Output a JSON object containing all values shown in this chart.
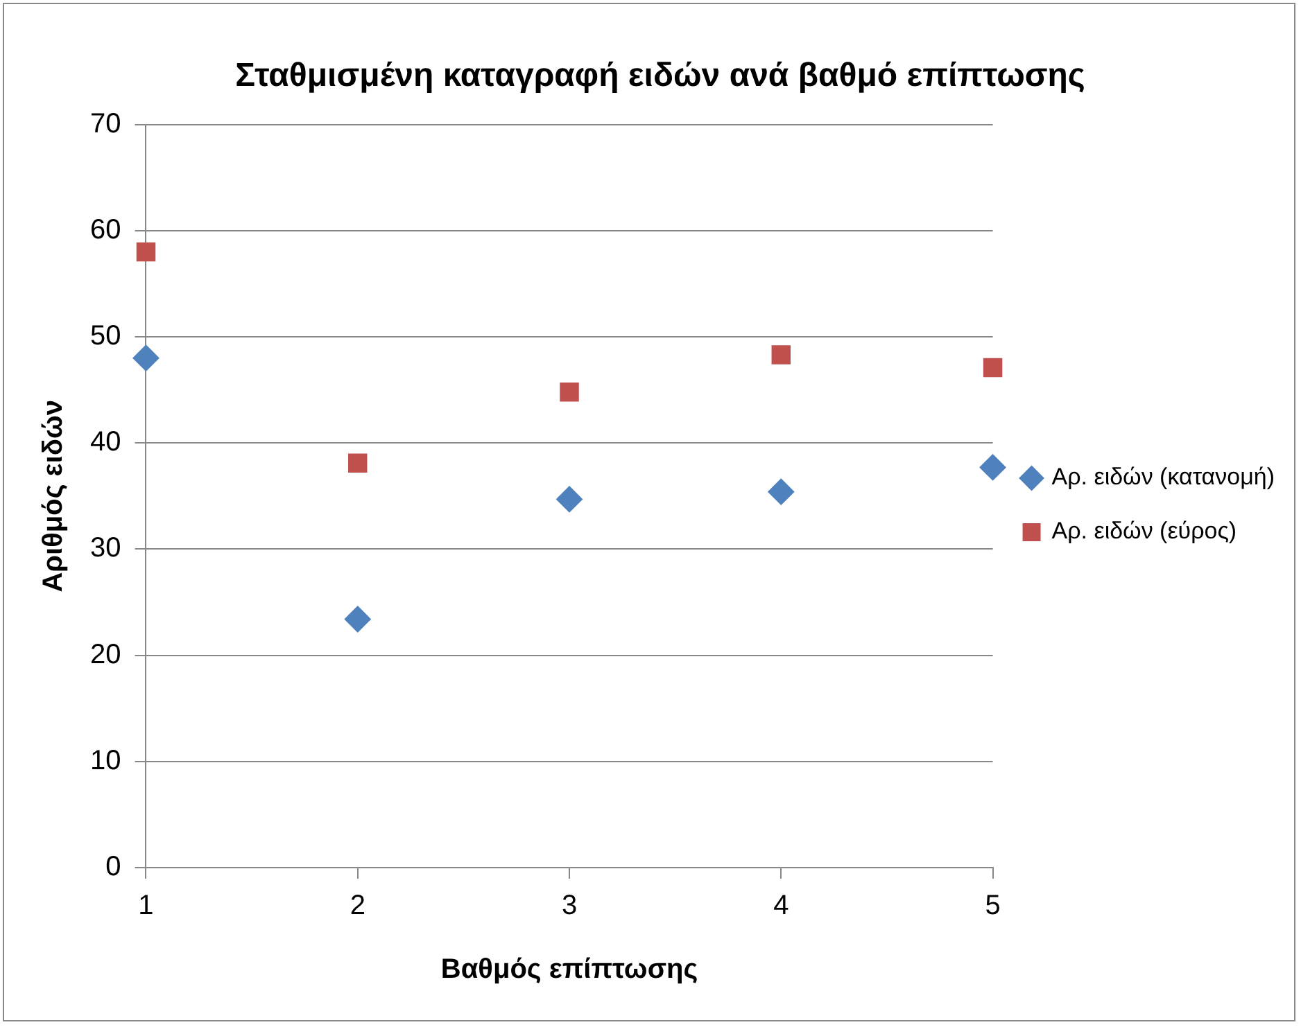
{
  "chart_data": {
    "type": "scatter",
    "title": "Σταθμισμένη καταγραφή ειδών ανά βαθμό επίπτωσης",
    "xlabel": "Βαθμός επίπτωσης",
    "ylabel": "Αριθμός ειδών",
    "x": [
      1,
      2,
      3,
      4,
      5
    ],
    "series": [
      {
        "name": "Αρ. ειδών (κατανομή)",
        "color": "#4f81bd",
        "marker": "diamond",
        "values": [
          48,
          23.4,
          34.7,
          35.4,
          37.7
        ]
      },
      {
        "name": "Αρ. ειδών (εύρος)",
        "color": "#c0504d",
        "marker": "square",
        "values": [
          58,
          38.1,
          44.8,
          48.3,
          47.1
        ]
      }
    ],
    "xlim": [
      1,
      5
    ],
    "xticks": [
      1,
      2,
      3,
      4,
      5
    ],
    "ylim": [
      0,
      70
    ],
    "yticks": [
      0,
      10,
      20,
      30,
      40,
      50,
      60,
      70
    ],
    "grid": "y",
    "legend": "right"
  }
}
